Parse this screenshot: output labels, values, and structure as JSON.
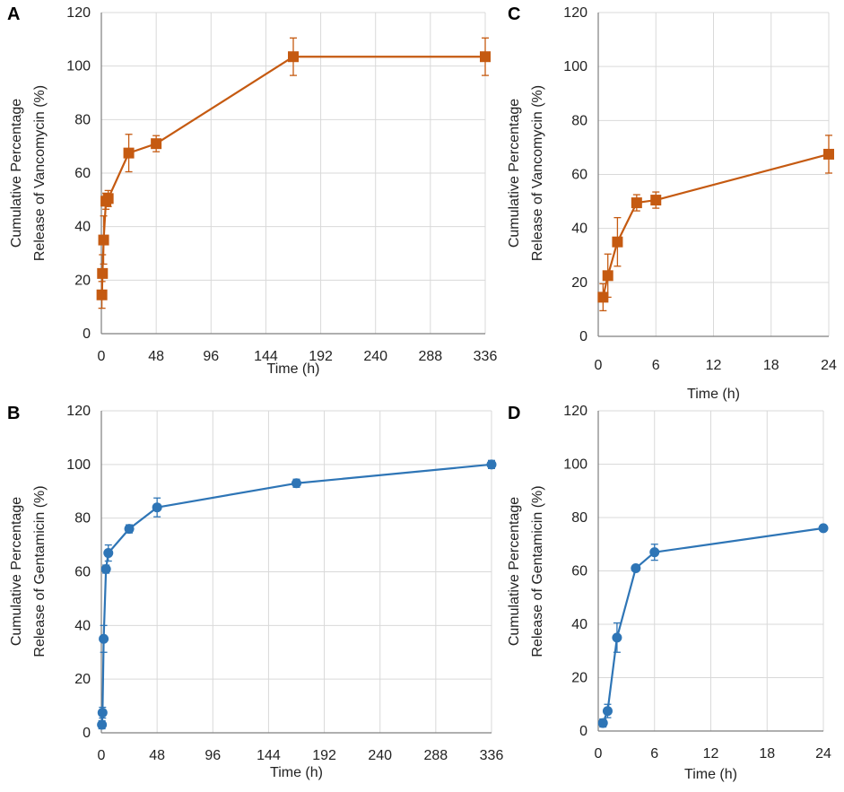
{
  "figure": {
    "panels": [
      "A",
      "B",
      "C",
      "D"
    ]
  },
  "chart_data": [
    {
      "panel": "A",
      "type": "line",
      "title": "",
      "xlabel": "Time (h)",
      "ylabel_lines": [
        "Cumulative Percentage",
        "Release of Vancomycin (%)"
      ],
      "xlim": [
        0,
        336
      ],
      "ylim": [
        0,
        120
      ],
      "xticks": [
        0,
        48,
        96,
        144,
        192,
        240,
        288,
        336
      ],
      "yticks": [
        0,
        20,
        40,
        60,
        80,
        100,
        120
      ],
      "grid": true,
      "marker": "square",
      "color": "#c55a11",
      "series": [
        {
          "name": "Vancomycin",
          "x": [
            0.5,
            1,
            2,
            4,
            6,
            24,
            48,
            168,
            336
          ],
          "y": [
            14.5,
            22.5,
            35,
            49.5,
            50.5,
            67.5,
            71,
            103.5,
            103.5
          ],
          "err": [
            5,
            7,
            9,
            3,
            3,
            7,
            3,
            7,
            7
          ]
        }
      ]
    },
    {
      "panel": "B",
      "type": "line",
      "title": "",
      "xlabel": "Time (h)",
      "ylabel_lines": [
        "Cumulative Percentage",
        "Release of Gentamicin (%)"
      ],
      "xlim": [
        0,
        336
      ],
      "ylim": [
        0,
        120
      ],
      "xticks": [
        0,
        48,
        96,
        144,
        192,
        240,
        288,
        336
      ],
      "yticks": [
        0,
        20,
        40,
        60,
        80,
        100,
        120
      ],
      "grid": true,
      "marker": "circle",
      "color": "#2e75b6",
      "series": [
        {
          "name": "Gentamicin",
          "x": [
            0.5,
            1,
            2,
            4,
            6,
            24,
            48,
            168,
            336
          ],
          "y": [
            3,
            7.5,
            35,
            61,
            67,
            76,
            84,
            93,
            100
          ],
          "err": [
            1.5,
            2,
            5,
            1.5,
            3,
            1.5,
            3.5,
            1.5,
            1.5
          ]
        }
      ]
    },
    {
      "panel": "C",
      "type": "line",
      "title": "",
      "xlabel": "Time (h)",
      "ylabel_lines": [
        "Cumulative Percentage",
        "Release of Vancomycin (%)"
      ],
      "xlim": [
        0,
        24
      ],
      "ylim": [
        0,
        120
      ],
      "xticks": [
        0,
        6,
        12,
        18,
        24
      ],
      "yticks": [
        0,
        20,
        40,
        60,
        80,
        100,
        120
      ],
      "grid": true,
      "marker": "square",
      "color": "#c55a11",
      "series": [
        {
          "name": "Vancomycin",
          "x": [
            0.5,
            1,
            2,
            4,
            6,
            24
          ],
          "y": [
            14.5,
            22.5,
            35,
            49.5,
            50.5,
            67.5
          ],
          "err": [
            5,
            8,
            9,
            3,
            3,
            7
          ]
        }
      ]
    },
    {
      "panel": "D",
      "type": "line",
      "title": "",
      "xlabel": "Time (h)",
      "ylabel_lines": [
        "Cumulative Percentage",
        "Release of Gentamicin (%)"
      ],
      "xlim": [
        0,
        24
      ],
      "ylim": [
        0,
        120
      ],
      "xticks": [
        0,
        6,
        12,
        18,
        24
      ],
      "yticks": [
        0,
        20,
        40,
        60,
        80,
        100,
        120
      ],
      "grid": true,
      "marker": "circle",
      "color": "#2e75b6",
      "series": [
        {
          "name": "Gentamicin",
          "x": [
            0.5,
            1,
            2,
            4,
            6,
            24
          ],
          "y": [
            3,
            7.5,
            35,
            61,
            67,
            76
          ],
          "err": [
            1.5,
            2.5,
            5.5,
            1,
            3,
            1
          ]
        }
      ]
    }
  ]
}
